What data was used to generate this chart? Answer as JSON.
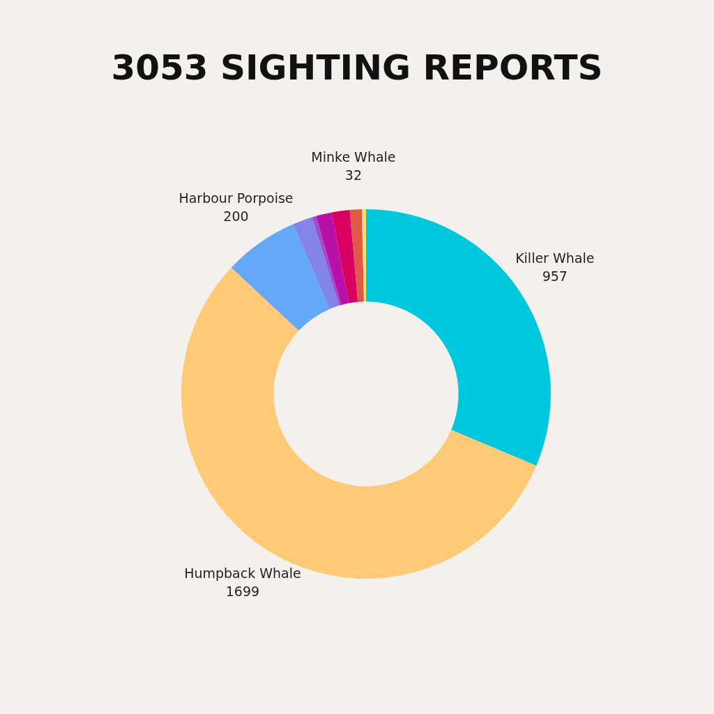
{
  "chart_data": {
    "type": "donut",
    "title": "3053 SIGHTING REPORTS",
    "categories": [
      "Killer Whale",
      "Humpback Whale",
      "Harbour Porpoise",
      null,
      null,
      null,
      null,
      "Minke Whale",
      null
    ],
    "values": [
      957,
      1699,
      200,
      53,
      11,
      42,
      48,
      32,
      11
    ],
    "colors": [
      "#00c8dc",
      "#ffca78",
      "#64a8f8",
      "#8484e8",
      "#9c50c8",
      "#b810a8",
      "#d80060",
      "#e05848",
      "#f0e070"
    ],
    "value_labels": [
      "957",
      "1699",
      "200",
      null,
      null,
      null,
      null,
      "32",
      null
    ],
    "legend": false
  }
}
